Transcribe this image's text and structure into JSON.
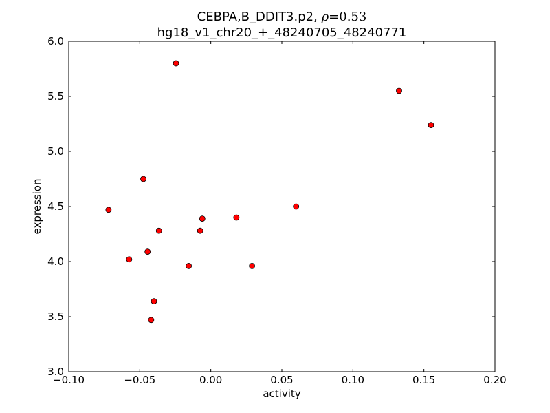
{
  "chart_data": {
    "type": "scatter",
    "title_line1_prefix": "CEBPA,B_DDIT3.p2, ",
    "title_rho_symbol": "ρ",
    "title_rho_value": "=0.53",
    "title_line2": "hg18_v1_chr20_+_48240705_48240771",
    "xlabel": "activity",
    "ylabel": "expression",
    "xlim": [
      -0.1,
      0.2
    ],
    "ylim": [
      3.0,
      6.0
    ],
    "xticks": [
      -0.1,
      -0.05,
      0.0,
      0.05,
      0.1,
      0.15,
      0.2
    ],
    "xtick_labels": [
      "−0.10",
      "−0.05",
      "0.00",
      "0.05",
      "0.10",
      "0.15",
      "0.20"
    ],
    "yticks": [
      3.0,
      3.5,
      4.0,
      4.5,
      5.0,
      5.5,
      6.0
    ],
    "ytick_labels": [
      "3.0",
      "3.5",
      "4.0",
      "4.5",
      "5.0",
      "5.5",
      "6.0"
    ],
    "grid": false,
    "marker_color": "#ff0000",
    "points": [
      {
        "x": -0.0245,
        "y": 5.8
      },
      {
        "x": 0.1325,
        "y": 5.55
      },
      {
        "x": 0.155,
        "y": 5.24
      },
      {
        "x": -0.0475,
        "y": 4.75
      },
      {
        "x": -0.072,
        "y": 4.47
      },
      {
        "x": 0.06,
        "y": 4.5
      },
      {
        "x": -0.006,
        "y": 4.39
      },
      {
        "x": 0.018,
        "y": 4.4
      },
      {
        "x": -0.0365,
        "y": 4.28
      },
      {
        "x": -0.0075,
        "y": 4.28
      },
      {
        "x": -0.0445,
        "y": 4.09
      },
      {
        "x": -0.0575,
        "y": 4.02
      },
      {
        "x": -0.0155,
        "y": 3.96
      },
      {
        "x": 0.029,
        "y": 3.96
      },
      {
        "x": -0.04,
        "y": 3.64
      },
      {
        "x": -0.042,
        "y": 3.47
      }
    ]
  }
}
